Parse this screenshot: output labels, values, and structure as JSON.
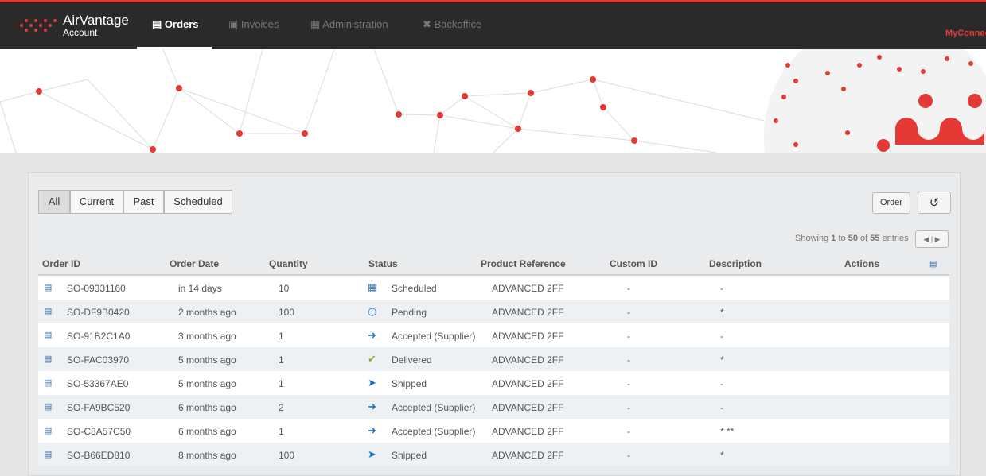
{
  "header": {
    "brand": "AirVantage",
    "subbrand": "Account",
    "nav": [
      "Orders",
      "Invoices",
      "Administration",
      "Backoffice"
    ],
    "user": "MyConnec"
  },
  "filters": [
    "All",
    "Current",
    "Past",
    "Scheduled"
  ],
  "order_button": "Order",
  "pagination": {
    "prefix": "Showing",
    "from": 1,
    "to_word": "to",
    "to": 50,
    "of_word": "of",
    "total": 55,
    "suffix": "entries"
  },
  "table": {
    "columns": [
      "Order ID",
      "Order Date",
      "Quantity",
      "Status",
      "Product Reference",
      "Custom ID",
      "Description",
      "Actions"
    ],
    "rows": [
      [
        "SO-09331160",
        "in 14 days",
        10,
        "Scheduled",
        "ADVANCED 2FF",
        "-",
        "-"
      ],
      [
        "SO-DF9B0420",
        "2 months ago",
        100,
        "Pending",
        "ADVANCED 2FF",
        "-",
        "*"
      ],
      [
        "SO-91B2C1A0",
        "3 months ago",
        1,
        "Accepted (Supplier)",
        "ADVANCED 2FF",
        "-",
        "-"
      ],
      [
        "SO-FAC03970",
        "5 months ago",
        1,
        "Delivered",
        "ADVANCED 2FF",
        "-",
        "*"
      ],
      [
        "SO-53367AE0",
        "5 months ago",
        1,
        "Shipped",
        "ADVANCED 2FF",
        "-",
        "-"
      ],
      [
        "SO-FA9BC520",
        "6 months ago",
        2,
        "Accepted (Supplier)",
        "ADVANCED 2FF",
        "-",
        "-"
      ],
      [
        "SO-C8A57C50",
        "6 months ago",
        1,
        "Accepted (Supplier)",
        "ADVANCED 2FF",
        "-",
        "* **"
      ],
      [
        "SO-B66ED810",
        "8 months ago",
        100,
        "Shipped",
        "ADVANCED 2FF",
        "-",
        "*"
      ]
    ]
  }
}
